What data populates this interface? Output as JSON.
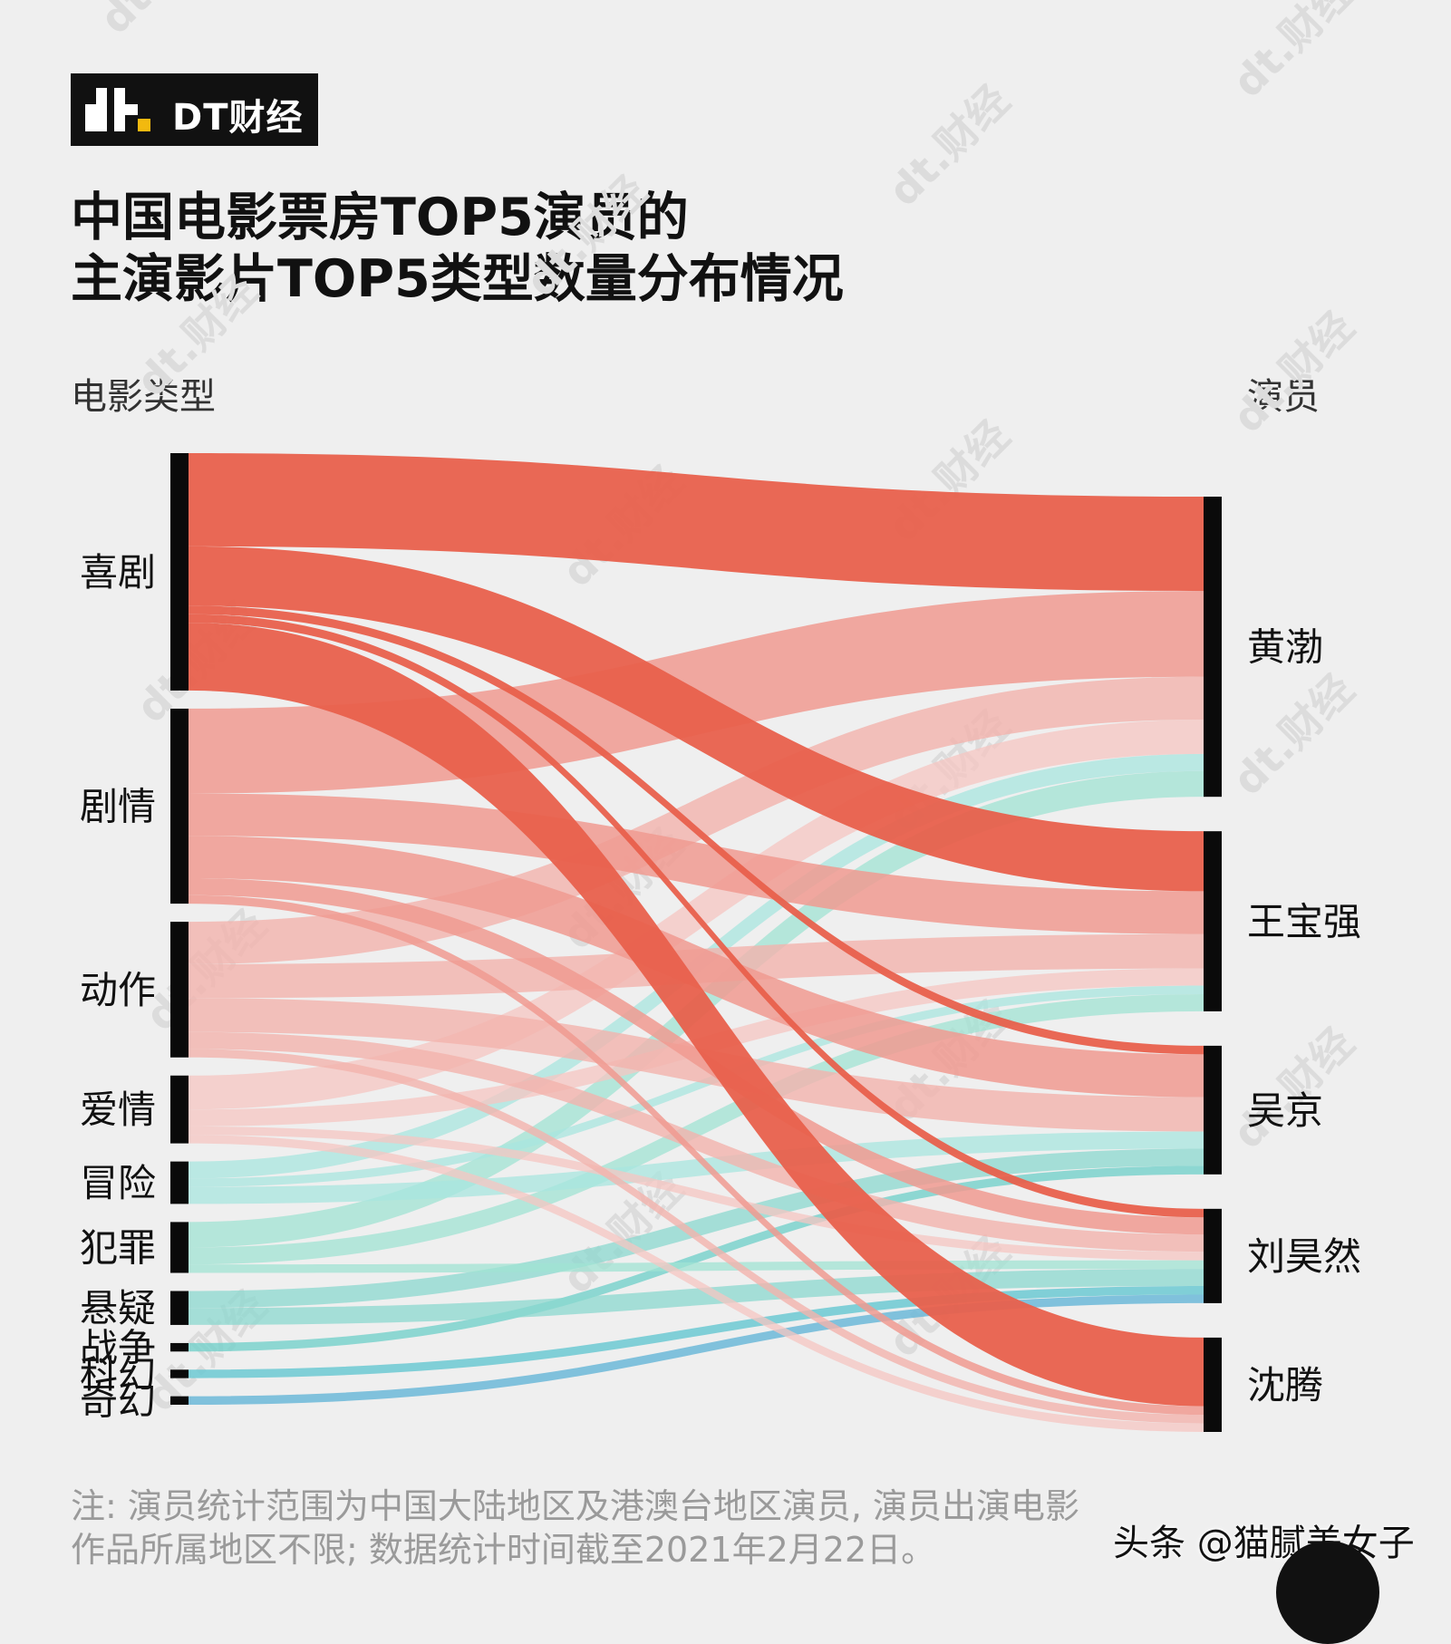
{
  "brand": {
    "logo_text": "DT财经",
    "accent_color": "#f2b90f"
  },
  "title": {
    "line1": "中国电影票房TOP5演员的",
    "line2": "主演影片TOP5类型数量分布情况"
  },
  "note": {
    "line1": "注: 演员统计范围为中国大陆地区及港澳台地区演员, 演员出演电影",
    "line2": "作品所属地区不限; 数据统计时间截至2021年2月22日。"
  },
  "credit": "头条 @猫腻美女子",
  "watermark": "dt.财经",
  "chart_data": {
    "type": "sankey",
    "left_axis_label": "电影类型",
    "right_axis_label": "演员",
    "genres": [
      {
        "name": "喜剧",
        "color": "#e8604c",
        "opacity": 0.95
      },
      {
        "name": "剧情",
        "color": "#f09a91",
        "opacity": 0.85
      },
      {
        "name": "动作",
        "color": "#f2b3ad",
        "opacity": 0.8
      },
      {
        "name": "爱情",
        "color": "#f5c6c1",
        "opacity": 0.75
      },
      {
        "name": "冒险",
        "color": "#a8e5df",
        "opacity": 0.75
      },
      {
        "name": "犯罪",
        "color": "#a0e3d3",
        "opacity": 0.75
      },
      {
        "name": "悬疑",
        "color": "#8bd8cf",
        "opacity": 0.75
      },
      {
        "name": "战争",
        "color": "#74d1cb",
        "opacity": 0.8
      },
      {
        "name": "科幻",
        "color": "#6cc9d2",
        "opacity": 0.85
      },
      {
        "name": "奇幻",
        "color": "#6cb9d8",
        "opacity": 0.85
      }
    ],
    "actors": [
      "黄渤",
      "王宝强",
      "吴京",
      "刘昊然",
      "沈腾"
    ],
    "flows": [
      {
        "from": "喜剧",
        "to": "黄渤",
        "value": 11
      },
      {
        "from": "喜剧",
        "to": "王宝强",
        "value": 7
      },
      {
        "from": "喜剧",
        "to": "吴京",
        "value": 1
      },
      {
        "from": "喜剧",
        "to": "刘昊然",
        "value": 1
      },
      {
        "from": "喜剧",
        "to": "沈腾",
        "value": 8
      },
      {
        "from": "剧情",
        "to": "黄渤",
        "value": 10
      },
      {
        "from": "剧情",
        "to": "王宝强",
        "value": 5
      },
      {
        "from": "剧情",
        "to": "吴京",
        "value": 5
      },
      {
        "from": "剧情",
        "to": "刘昊然",
        "value": 2
      },
      {
        "from": "剧情",
        "to": "沈腾",
        "value": 1
      },
      {
        "from": "动作",
        "to": "黄渤",
        "value": 5
      },
      {
        "from": "动作",
        "to": "王宝强",
        "value": 4
      },
      {
        "from": "动作",
        "to": "吴京",
        "value": 4
      },
      {
        "from": "动作",
        "to": "刘昊然",
        "value": 2
      },
      {
        "from": "动作",
        "to": "沈腾",
        "value": 1
      },
      {
        "from": "爱情",
        "to": "黄渤",
        "value": 4
      },
      {
        "from": "爱情",
        "to": "王宝强",
        "value": 2
      },
      {
        "from": "爱情",
        "to": "刘昊然",
        "value": 1
      },
      {
        "from": "爱情",
        "to": "沈腾",
        "value": 1
      },
      {
        "from": "冒险",
        "to": "黄渤",
        "value": 2
      },
      {
        "from": "冒险",
        "to": "王宝强",
        "value": 1
      },
      {
        "from": "冒险",
        "to": "吴京",
        "value": 2
      },
      {
        "from": "犯罪",
        "to": "黄渤",
        "value": 3
      },
      {
        "from": "犯罪",
        "to": "王宝强",
        "value": 2
      },
      {
        "from": "犯罪",
        "to": "刘昊然",
        "value": 1
      },
      {
        "from": "悬疑",
        "to": "吴京",
        "value": 2
      },
      {
        "from": "悬疑",
        "to": "刘昊然",
        "value": 2
      },
      {
        "from": "战争",
        "to": "吴京",
        "value": 1
      },
      {
        "from": "科幻",
        "to": "刘昊然",
        "value": 1
      },
      {
        "from": "奇幻",
        "to": "刘昊然",
        "value": 1
      }
    ]
  }
}
